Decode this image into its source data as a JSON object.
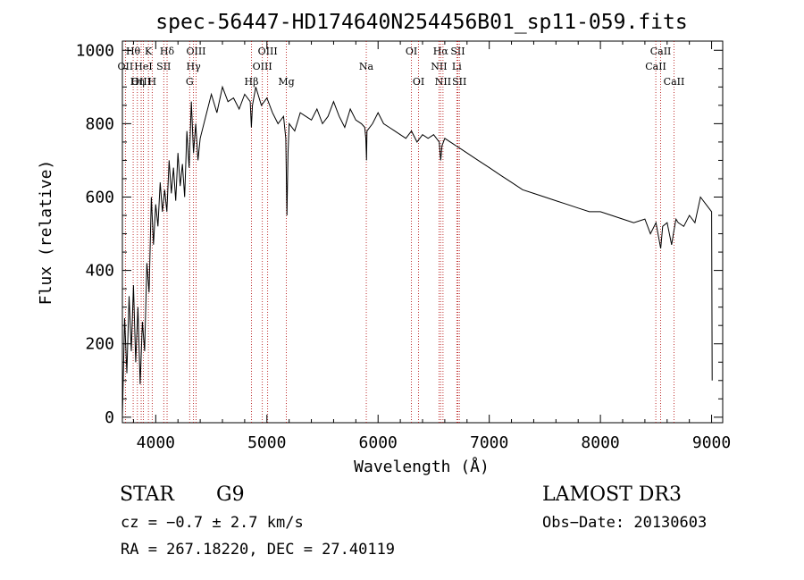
{
  "chart_data": {
    "type": "line",
    "title": "spec-56447-HD174640N254456B01_sp11-059.fits",
    "xlabel": "Wavelength (Å)",
    "ylabel": "Flux (relative)",
    "xlim": [
      3700,
      9100
    ],
    "ylim": [
      -15,
      1025
    ],
    "xticks": [
      4000,
      5000,
      6000,
      7000,
      8000,
      9000
    ],
    "yticks": [
      0,
      200,
      400,
      600,
      800,
      1000
    ],
    "series": [
      {
        "name": "flux",
        "x": [
          3700,
          3720,
          3740,
          3760,
          3780,
          3800,
          3820,
          3840,
          3860,
          3880,
          3900,
          3920,
          3940,
          3960,
          3980,
          4000,
          4020,
          4040,
          4060,
          4080,
          4100,
          4120,
          4140,
          4160,
          4180,
          4200,
          4220,
          4240,
          4260,
          4280,
          4300,
          4320,
          4340,
          4360,
          4380,
          4400,
          4450,
          4500,
          4550,
          4600,
          4650,
          4700,
          4750,
          4800,
          4850,
          4860,
          4870,
          4900,
          4950,
          5000,
          5050,
          5100,
          5150,
          5170,
          5180,
          5190,
          5200,
          5250,
          5300,
          5350,
          5400,
          5450,
          5500,
          5550,
          5600,
          5650,
          5700,
          5750,
          5800,
          5850,
          5880,
          5890,
          5896,
          5900,
          5950,
          6000,
          6050,
          6100,
          6150,
          6200,
          6250,
          6300,
          6350,
          6400,
          6450,
          6500,
          6550,
          6563,
          6575,
          6600,
          6650,
          6700,
          6750,
          6800,
          6850,
          6900,
          7000,
          7100,
          7200,
          7300,
          7400,
          7500,
          7600,
          7700,
          7800,
          7900,
          8000,
          8100,
          8200,
          8300,
          8400,
          8450,
          8500,
          8542,
          8560,
          8600,
          8640,
          8662,
          8680,
          8700,
          8750,
          8800,
          8850,
          8900,
          8950,
          9000,
          9005
        ],
        "values": [
          0,
          270,
          120,
          330,
          180,
          360,
          150,
          300,
          90,
          260,
          180,
          420,
          340,
          600,
          470,
          580,
          520,
          640,
          560,
          620,
          560,
          700,
          610,
          680,
          590,
          720,
          630,
          690,
          600,
          780,
          680,
          860,
          720,
          800,
          700,
          760,
          820,
          880,
          830,
          900,
          860,
          870,
          840,
          880,
          860,
          790,
          850,
          900,
          850,
          870,
          830,
          800,
          820,
          760,
          550,
          720,
          800,
          780,
          830,
          820,
          810,
          840,
          800,
          820,
          860,
          820,
          790,
          840,
          810,
          800,
          790,
          760,
          700,
          780,
          800,
          830,
          800,
          790,
          780,
          770,
          760,
          780,
          750,
          770,
          760,
          770,
          750,
          700,
          740,
          760,
          750,
          740,
          730,
          720,
          710,
          700,
          680,
          660,
          640,
          620,
          610,
          600,
          590,
          580,
          570,
          560,
          560,
          550,
          540,
          530,
          540,
          500,
          530,
          460,
          520,
          530,
          470,
          510,
          540,
          530,
          520,
          550,
          530,
          600,
          580,
          560,
          100
        ]
      }
    ],
    "lines": [
      {
        "label": "Hθ",
        "wavelength": 3797,
        "row": 1
      },
      {
        "label": "OII",
        "wavelength": 3727,
        "row": 2
      },
      {
        "label": "OIII",
        "wavelength": 3869,
        "row": 3
      },
      {
        "label": "K",
        "wavelength": 3934,
        "row": 1
      },
      {
        "label": "HeI",
        "wavelength": 3889,
        "row": 2
      },
      {
        "label": "Hη",
        "wavelength": 3835,
        "row": 3
      },
      {
        "label": "Hδ",
        "wavelength": 4102,
        "row": 1
      },
      {
        "label": "SII",
        "wavelength": 4072,
        "row": 2
      },
      {
        "label": "H",
        "wavelength": 3968,
        "row": 3
      },
      {
        "label": "OIII",
        "wavelength": 4363,
        "row": 1
      },
      {
        "label": "Hγ",
        "wavelength": 4340,
        "row": 2
      },
      {
        "label": "G",
        "wavelength": 4305,
        "row": 3
      },
      {
        "label": "Hβ",
        "wavelength": 4861,
        "row": 3
      },
      {
        "label": "OIII",
        "wavelength": 4959,
        "row": 2
      },
      {
        "label": "OIII",
        "wavelength": 5007,
        "row": 1
      },
      {
        "label": "Mg",
        "wavelength": 5175,
        "row": 3
      },
      {
        "label": "Na",
        "wavelength": 5894,
        "row": 2
      },
      {
        "label": "OI",
        "wavelength": 6300,
        "row": 1
      },
      {
        "label": "OI",
        "wavelength": 6364,
        "row": 3
      },
      {
        "label": "Hα",
        "wavelength": 6563,
        "row": 1
      },
      {
        "label": "NII",
        "wavelength": 6548,
        "row": 2
      },
      {
        "label": "NII",
        "wavelength": 6584,
        "row": 3
      },
      {
        "label": "SII",
        "wavelength": 6717,
        "row": 1
      },
      {
        "label": "Li",
        "wavelength": 6708,
        "row": 2
      },
      {
        "label": "SII",
        "wavelength": 6731,
        "row": 3
      },
      {
        "label": "CaII",
        "wavelength": 8542,
        "row": 1
      },
      {
        "label": "CaII",
        "wavelength": 8498,
        "row": 2
      },
      {
        "label": "CaII",
        "wavelength": 8662,
        "row": 3
      }
    ]
  },
  "info": {
    "class": "STAR",
    "subclass": "G9",
    "survey": "LAMOST DR3",
    "cz": "cz = −0.7 ± 2.7 km/s",
    "obs_date": "Obs−Date: 20130603",
    "coords": "RA = 267.18220, DEC =  27.40119"
  }
}
